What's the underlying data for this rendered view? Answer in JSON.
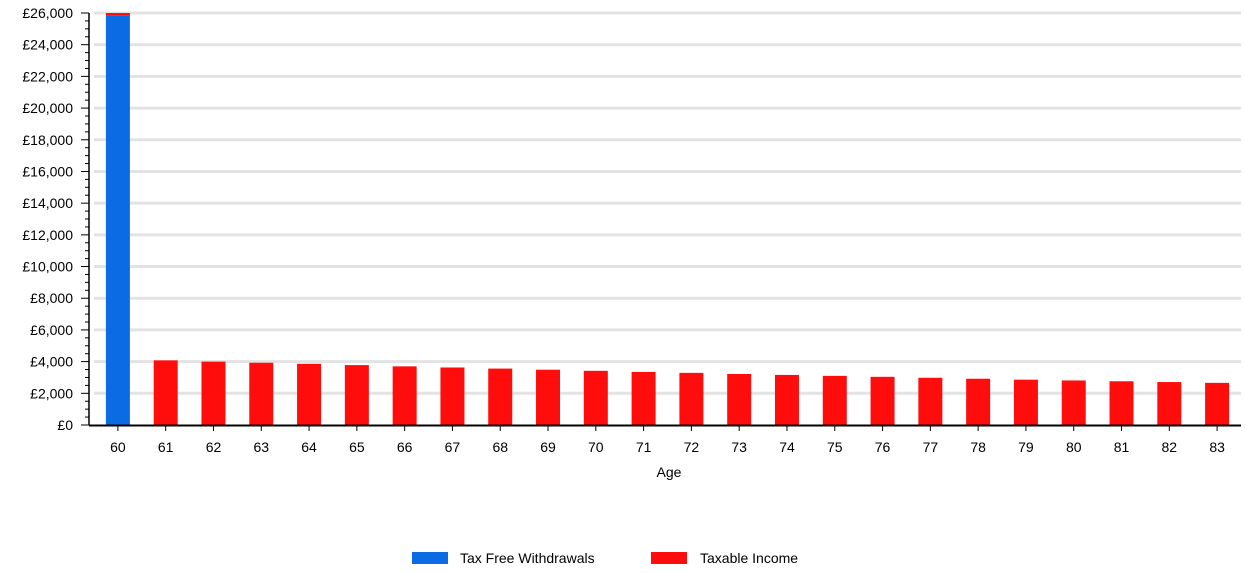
{
  "chart_data": {
    "type": "bar",
    "stacked": true,
    "xlabel": "Age",
    "ylabel": "",
    "ylim": [
      0,
      26000
    ],
    "y_tick_step": 2000,
    "y_tick_labels": [
      "£0",
      "£2,000",
      "£4,000",
      "£6,000",
      "£8,000",
      "£10,000",
      "£12,000",
      "£14,000",
      "£16,000",
      "£18,000",
      "£20,000",
      "£22,000",
      "£24,000",
      "£26,000"
    ],
    "grid": "horizontal",
    "legend_position": "bottom-center",
    "categories": [
      "60",
      "61",
      "62",
      "63",
      "64",
      "65",
      "66",
      "67",
      "68",
      "69",
      "70",
      "71",
      "72",
      "73",
      "74",
      "75",
      "76",
      "77",
      "78",
      "79",
      "80",
      "81",
      "82",
      "83"
    ],
    "series": [
      {
        "name": "Tax Free Withdrawals",
        "color": "#0a6be3",
        "values": [
          25850,
          0,
          0,
          0,
          0,
          0,
          0,
          0,
          0,
          0,
          0,
          0,
          0,
          0,
          0,
          0,
          0,
          0,
          0,
          0,
          0,
          0,
          0,
          0
        ]
      },
      {
        "name": "Taxable Income",
        "color": "#ff0d0d",
        "values": [
          150,
          4080,
          4000,
          3930,
          3860,
          3780,
          3700,
          3630,
          3560,
          3490,
          3420,
          3350,
          3290,
          3220,
          3160,
          3100,
          3040,
          2980,
          2920,
          2860,
          2810,
          2760,
          2710,
          2660
        ]
      }
    ]
  }
}
